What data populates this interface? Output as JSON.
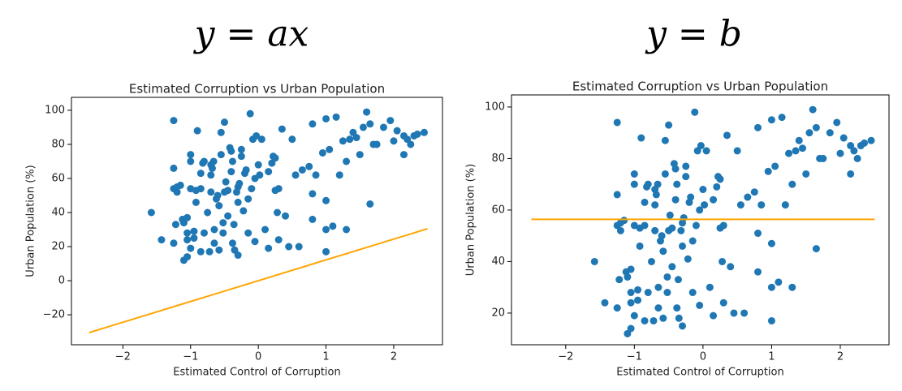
{
  "chart_data": [
    {
      "type": "scatter",
      "heading": "y = ax",
      "title": "Estimated Corruption vs Urban Population",
      "xlabel": "Estimated Control of Corruption",
      "ylabel": "Urban Population (%)",
      "xlim": [
        -2.76,
        2.72
      ],
      "ylim": [
        -37.6,
        107.6
      ],
      "xticks": [
        {
          "value": -2,
          "label": "−2"
        },
        {
          "value": -1,
          "label": "−1"
        },
        0,
        1,
        2
      ],
      "yticks": [
        {
          "value": -20,
          "label": "−20"
        },
        0,
        20,
        40,
        60,
        80,
        100
      ],
      "series": [
        {
          "type": "scatter",
          "color": "#1f77b4",
          "x": [
            -1.58,
            -1.43,
            -1.25,
            -1.25,
            -1.25,
            -1.22,
            -1.25,
            -1.2,
            -1.2,
            -1.15,
            -1.12,
            -1.1,
            -1.1,
            -1.05,
            -1.05,
            -1.05,
            -1.05,
            -1,
            -1,
            -1,
            -1,
            -0.95,
            -0.95,
            -0.92,
            -0.92,
            -0.9,
            -0.85,
            -0.85,
            -0.85,
            -0.82,
            -0.8,
            -0.8,
            -0.75,
            -0.72,
            -0.7,
            -0.7,
            -0.7,
            -0.68,
            -0.66,
            -0.65,
            -0.65,
            -0.62,
            -0.6,
            -0.58,
            -0.58,
            -0.55,
            -0.55,
            -0.52,
            -0.52,
            -0.5,
            -0.5,
            -0.48,
            -0.45,
            -0.45,
            -0.42,
            -0.4,
            -0.4,
            -0.38,
            -0.38,
            -0.36,
            -0.35,
            -0.32,
            -0.3,
            -0.3,
            -0.3,
            -0.28,
            -0.25,
            -0.25,
            -0.22,
            -0.2,
            -0.18,
            -0.15,
            -0.15,
            -0.12,
            -0.1,
            -0.08,
            -0.05,
            -0.05,
            -0.03,
            0,
            0.02,
            0.05,
            0.1,
            0.15,
            0.15,
            0.2,
            0.22,
            0.25,
            0.25,
            0.28,
            0.3,
            0.3,
            0.35,
            0.4,
            0.45,
            0.5,
            0.55,
            0.6,
            0.65,
            0.75,
            0.8,
            0.8,
            0.8,
            0.85,
            0.95,
            1,
            1,
            1,
            1,
            1.05,
            1.1,
            1.15,
            1.2,
            1.25,
            1.3,
            1.3,
            1.35,
            1.4,
            1.45,
            1.5,
            1.55,
            1.6,
            1.65,
            1.65,
            1.7,
            1.75,
            1.85,
            1.95,
            2,
            2.05,
            2.15,
            2.15,
            2.2,
            2.25,
            2.3,
            2.35,
            2.45
          ],
          "y": [
            40,
            24,
            94,
            66,
            54,
            33,
            22,
            52,
            55,
            56,
            36,
            34,
            12,
            14,
            24,
            28,
            37,
            74,
            70,
            54,
            19,
            29,
            25,
            53,
            46,
            88,
            17,
            63,
            54,
            69,
            70,
            28,
            40,
            17,
            68,
            62,
            52,
            66,
            70,
            22,
            30,
            48,
            50,
            18,
            44,
            87,
            74,
            28,
            34,
            93,
            52,
            58,
            38,
            53,
            78,
            76,
            64,
            70,
            22,
            33,
            18,
            52,
            15,
            55,
            46,
            57,
            73,
            77,
            41,
            63,
            65,
            28,
            48,
            98,
            54,
            83,
            60,
            23,
            85,
            68,
            62,
            83,
            30,
            19,
            64,
            69,
            73,
            72,
            53,
            40,
            54,
            24,
            89,
            38,
            20,
            83,
            62,
            20,
            65,
            67,
            92,
            51,
            36,
            62,
            75,
            95,
            30,
            47,
            17,
            77,
            32,
            96,
            62,
            82,
            70,
            30,
            83,
            87,
            84,
            74,
            90,
            99,
            45,
            92,
            80,
            80,
            90,
            94,
            82,
            88,
            74,
            85,
            83,
            80,
            85,
            86,
            87
          ]
        },
        {
          "type": "line",
          "color": "#ffa500",
          "x": [
            -2.5,
            2.5
          ],
          "y": [
            -30.5,
            30.5
          ]
        }
      ]
    },
    {
      "type": "scatter",
      "heading": "y = b",
      "title": "Estimated Corruption vs Urban Population",
      "xlabel": "Estimated Control of Corruption",
      "ylabel": "Urban Population (%)",
      "xlim": [
        -2.79,
        2.71
      ],
      "ylim": [
        7.7,
        104.7
      ],
      "xticks": [
        {
          "value": -2,
          "label": "−2"
        },
        {
          "value": -1,
          "label": "−1"
        },
        0,
        1,
        2
      ],
      "yticks": [
        20,
        40,
        60,
        80,
        100
      ],
      "series": [
        {
          "type": "scatter",
          "color": "#1f77b4",
          "x": [
            -1.58,
            -1.43,
            -1.25,
            -1.25,
            -1.25,
            -1.22,
            -1.25,
            -1.2,
            -1.2,
            -1.15,
            -1.12,
            -1.1,
            -1.1,
            -1.05,
            -1.05,
            -1.05,
            -1.05,
            -1,
            -1,
            -1,
            -1,
            -0.95,
            -0.95,
            -0.92,
            -0.92,
            -0.9,
            -0.85,
            -0.85,
            -0.85,
            -0.82,
            -0.8,
            -0.8,
            -0.75,
            -0.72,
            -0.7,
            -0.7,
            -0.7,
            -0.68,
            -0.66,
            -0.65,
            -0.65,
            -0.62,
            -0.6,
            -0.58,
            -0.58,
            -0.55,
            -0.55,
            -0.52,
            -0.52,
            -0.5,
            -0.5,
            -0.48,
            -0.45,
            -0.45,
            -0.42,
            -0.4,
            -0.4,
            -0.38,
            -0.38,
            -0.36,
            -0.35,
            -0.32,
            -0.3,
            -0.3,
            -0.3,
            -0.28,
            -0.25,
            -0.25,
            -0.22,
            -0.2,
            -0.18,
            -0.15,
            -0.15,
            -0.12,
            -0.1,
            -0.08,
            -0.05,
            -0.05,
            -0.03,
            0,
            0.02,
            0.05,
            0.1,
            0.15,
            0.15,
            0.2,
            0.22,
            0.25,
            0.25,
            0.28,
            0.3,
            0.3,
            0.35,
            0.4,
            0.45,
            0.5,
            0.55,
            0.6,
            0.65,
            0.75,
            0.8,
            0.8,
            0.8,
            0.85,
            0.95,
            1,
            1,
            1,
            1,
            1.05,
            1.1,
            1.15,
            1.2,
            1.25,
            1.3,
            1.3,
            1.35,
            1.4,
            1.45,
            1.5,
            1.55,
            1.6,
            1.65,
            1.65,
            1.7,
            1.75,
            1.85,
            1.95,
            2,
            2.05,
            2.15,
            2.15,
            2.2,
            2.25,
            2.3,
            2.35,
            2.45
          ],
          "y": [
            40,
            24,
            94,
            66,
            54,
            33,
            22,
            52,
            55,
            56,
            36,
            34,
            12,
            14,
            24,
            28,
            37,
            74,
            70,
            54,
            19,
            29,
            25,
            53,
            46,
            88,
            17,
            63,
            54,
            69,
            70,
            28,
            40,
            17,
            68,
            62,
            52,
            66,
            70,
            22,
            30,
            48,
            50,
            18,
            44,
            87,
            74,
            28,
            34,
            93,
            52,
            58,
            38,
            53,
            78,
            76,
            64,
            70,
            22,
            33,
            18,
            52,
            15,
            55,
            46,
            57,
            73,
            77,
            41,
            63,
            65,
            28,
            48,
            98,
            54,
            83,
            60,
            23,
            85,
            68,
            62,
            83,
            30,
            19,
            64,
            69,
            73,
            72,
            53,
            40,
            54,
            24,
            89,
            38,
            20,
            83,
            62,
            20,
            65,
            67,
            92,
            51,
            36,
            62,
            75,
            95,
            30,
            47,
            17,
            77,
            32,
            96,
            62,
            82,
            70,
            30,
            83,
            87,
            84,
            74,
            90,
            99,
            45,
            92,
            80,
            80,
            90,
            94,
            82,
            88,
            74,
            85,
            83,
            80,
            85,
            86,
            87
          ]
        },
        {
          "type": "line",
          "color": "#ffa500",
          "x": [
            -2.5,
            2.5
          ],
          "y": [
            56.4,
            56.4
          ]
        }
      ]
    }
  ]
}
